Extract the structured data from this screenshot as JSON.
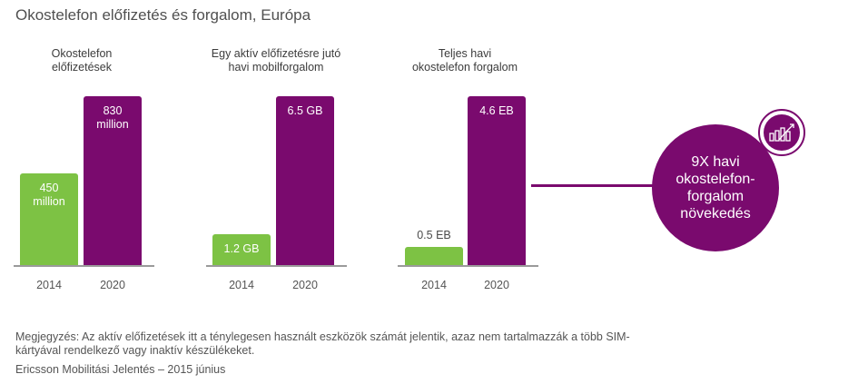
{
  "title": "Okostelefon előfizetés és forgalom, Európa",
  "colors": {
    "year_2014": "#7dc244",
    "year_2020": "#7a0a6e"
  },
  "chart_data": [
    {
      "type": "bar",
      "title": "Okostelefon\nelőfizetések",
      "categories": [
        "2014",
        "2020"
      ],
      "values": [
        450,
        830
      ],
      "value_labels": [
        "450\nmillion",
        "830\nmillion"
      ],
      "unit": "million"
    },
    {
      "type": "bar",
      "title": "Egy aktív előfizetésre jutó\nhavi mobilforgalom",
      "categories": [
        "2014",
        "2020"
      ],
      "values": [
        1.2,
        6.5
      ],
      "value_labels": [
        "1.2 GB",
        "6.5 GB"
      ],
      "unit": "GB"
    },
    {
      "type": "bar",
      "title": "Teljes havi\nokostelefon forgalom",
      "categories": [
        "2014",
        "2020"
      ],
      "values": [
        0.5,
        4.6
      ],
      "value_labels": [
        "0.5 EB",
        "4.6 EB"
      ],
      "unit": "EB"
    }
  ],
  "callout": {
    "text": "9X havi\nokostelefon-\nforgalom\nnövekedés",
    "icon": "bar-chart-growth-icon"
  },
  "note": "Megjegyzés: Az aktív előfizetések itt a ténylegesen használt eszközök számát jelentik, azaz nem tartalmazzák a több SIM-kártyával rendelkező vagy inaktív készülékeket.",
  "source": "Ericsson Mobilitási Jelentés – 2015 június"
}
